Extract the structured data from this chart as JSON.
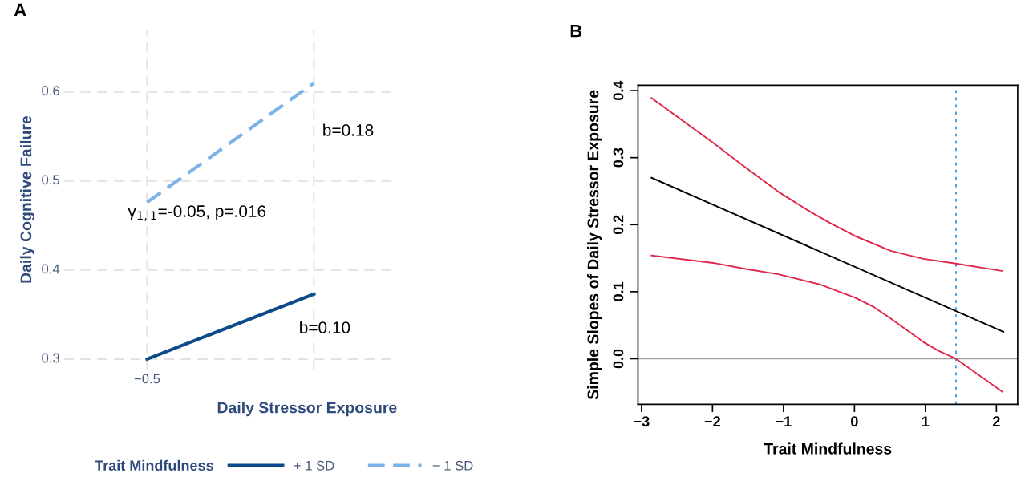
{
  "chart_data": [
    {
      "type": "line",
      "title": "A",
      "xlabel": "Daily Stressor Exposure",
      "ylabel": "Daily Cognitive Failure",
      "legend_title": "Trait Mindfulness",
      "categories": [
        "−0.5",
        null
      ],
      "series": [
        {
          "name": "+ 1 SD",
          "color": "#0d4a8a",
          "values": [
            0.3,
            0.373
          ],
          "line_style": "solid"
        },
        {
          "name": "− 1 SD",
          "color": "#7db4e8",
          "values": [
            0.476,
            0.61
          ],
          "line_style": "dashed"
        }
      ],
      "ylim": [
        0.288,
        0.67
      ],
      "yticks": [
        0.3,
        0.4,
        0.5,
        0.6
      ],
      "grid": true,
      "legend": "bottom",
      "marker": "none",
      "annotations": [
        "b=0.18",
        "γ$_{1,1}$=-0.05, p=.016",
        "b=0.10"
      ]
    },
    {
      "type": "line",
      "title": "B",
      "xlabel": "Trait Mindfulness",
      "ylabel": "Simple Slopes of Daily Stressor Exposure",
      "series": [
        {
          "color": "#000000",
          "x": [
            -2.86,
            2.1
          ],
          "values": [
            0.27,
            0.04
          ]
        },
        {
          "color": "#e0284a",
          "x": [
            -2.86,
            -1.99,
            -1.53,
            -1.07,
            -0.65,
            -0.32,
            0.01,
            0.51,
            0.97,
            1.43,
            2.08
          ],
          "values": [
            0.389,
            0.322,
            0.285,
            0.249,
            0.221,
            0.201,
            0.183,
            0.161,
            0.149,
            0.142,
            0.131
          ]
        },
        {
          "color": "#e0284a",
          "x": [
            -2.86,
            -1.99,
            -1.53,
            -1.07,
            -0.49,
            0.01,
            0.26,
            0.51,
            0.97,
            1.18,
            1.43,
            2.08
          ],
          "values": [
            0.154,
            0.143,
            0.134,
            0.126,
            0.111,
            0.091,
            0.078,
            0.06,
            0.025,
            0.012,
            0.0,
            -0.049
          ]
        }
      ],
      "ref_lines": [
        {
          "axis": "y",
          "value": 0,
          "color": "#a0a0a0",
          "line_style": "solid"
        },
        {
          "axis": "x",
          "value": 1.43,
          "color": "#3a9ae8",
          "line_style": "dotted"
        }
      ],
      "xlim": [
        -3.05,
        2.3
      ],
      "xticks": [
        {
          "value": -3,
          "label": "−3"
        },
        {
          "value": -2,
          "label": "−2"
        },
        {
          "value": -1,
          "label": "−1"
        },
        0,
        1,
        2
      ],
      "ylim": [
        -0.068,
        0.408
      ],
      "yticks": [
        {
          "value": 0,
          "label": "0.0"
        },
        0.1,
        0.2,
        0.3,
        0.4
      ],
      "grid": false,
      "legend": false,
      "marker": "none"
    }
  ]
}
